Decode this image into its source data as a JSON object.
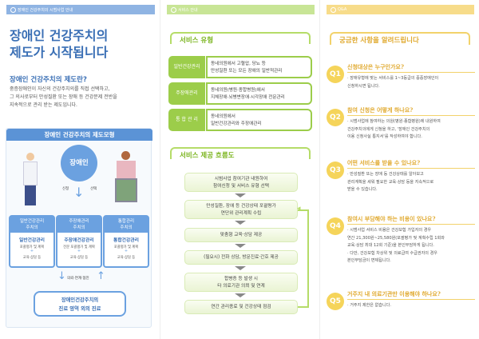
{
  "colors": {
    "blue": "#3a6fb5",
    "green": "#9ccd4a",
    "yellow": "#f5d45a"
  },
  "left": {
    "header": "장애인 건강주치의 시범사업 안내",
    "title_line1": "장애인 건강주치의",
    "title_line2": "제도가 시작됩니다",
    "subtitle": "장애인 건강주치의 제도란?",
    "body": [
      "중증장애인이 자신의 건강주치의를 직접 선택하고,",
      "그 의사로부터 만성질환 또는 장애 등 건강문제 전반을",
      "지속적으로 관리 받는 제도입니다."
    ],
    "model": {
      "title": "장애인 건강주치의 제도모형",
      "center": "장애인",
      "apply": "신청",
      "select": "선택",
      "cols": [
        {
          "head1": "일반건강관리",
          "head2": "주치의",
          "name": "일반건강관리",
          "s1": "포괄평가 및 계획",
          "s2": "교육·상담 등"
        },
        {
          "head1": "주장애관리",
          "head2": "주치의",
          "name": "주장애건강관리",
          "s1": "전문 포괄평가 및 계획",
          "s2": "교육·상담 등"
        },
        {
          "head1": "통합관리",
          "head2": "주치의",
          "name": "통합건강관리",
          "s1": "포괄평가 및 계획",
          "s2": "교육·상담 등"
        }
      ],
      "link": "의뢰·연계·협진",
      "bottom1": "장애인건강주치의",
      "bottom2": "진료 영역 외의 진료"
    }
  },
  "middle": {
    "header": "서비스 안내",
    "types_title": "서비스 유형",
    "types": [
      {
        "label": "일반건강관리",
        "l1": "동네의원에서 고혈압, 당뇨 등",
        "l2": "만성질환 또는 모든 장애의 일반적관리"
      },
      {
        "label": "주장애관리",
        "l1": "동네의원(병원·종합병원)에서",
        "l2": "지체장애·뇌병변장애·시각장애 전문관리"
      },
      {
        "label": "통 합 관 리",
        "l1": "동네의원에서",
        "l2": "일반건강관리와 주장애관리"
      }
    ],
    "flow_title": "서비스 제공 흐름도",
    "flow": [
      [
        "시범사업 참여기관 내원하여",
        "참여신청 및 서비스 유형 선택"
      ],
      [
        "만성질환, 장애 등 건강상태 포괄평가",
        "연단위 관리계획 수립"
      ],
      [
        "맞춤형 교육·상담 제공"
      ],
      [
        "(필요시) 전화 상담, 방문진료·간호 제공"
      ],
      [
        "합병증 등 발생 시",
        "타 의료기관 의뢰 및 연계"
      ],
      [
        "연간 관리종료 및 건강상태 점검"
      ]
    ]
  },
  "right": {
    "header": "Q&A",
    "title": "궁금한 사항을 알려드립니다",
    "qa": [
      {
        "badge": "Q1",
        "q": "신청대상은 누구인가요?",
        "a": [
          "· 장애유형에 맞는 서비스를 1~3등급의 중증장애인이",
          "신청하시면 됩니다."
        ]
      },
      {
        "badge": "Q2",
        "q": "참여 신청은 어떻게 하나요?",
        "a": [
          "· 시범사업에 참여하는 의원(병원·종합병원)에 내원하여",
          "건강주치의에게 신청을 하고, '장애인 건강주치의",
          "이용 신청사실 통지서'를 작성하여야 합니다."
        ]
      },
      {
        "badge": "Q3",
        "q": "어떤 서비스를 받을 수 있나요?",
        "a": [
          "· 만성질환 또는 장애 등 건강상태를 알아보고",
          "관리계획을 세워 필요한 교육·상담 등을 지속적으로",
          "받을 수 있습니다."
        ]
      },
      {
        "badge": "Q4",
        "q": "참여시 부담해야 하는 비용이 있나요?",
        "a": [
          "· 시범사업 서비스 비용은 건강보험 가입자의 경우",
          "연간 21,300원~25,580원(포괄평가 및 계획수립 1회와",
          "교육·상담 최대 12회 기준)을 본인부담하게 됩니다.",
          "· 다만, 건강보험 차상위 및 의료급여 수급권자의 경우",
          "본인부담금이 면제됩니다."
        ]
      },
      {
        "badge": "Q5",
        "q": "거주지 내 의료기관만 이용해야 하나요?",
        "a": [
          "· 거주지 제한은 없습니다."
        ]
      }
    ]
  }
}
